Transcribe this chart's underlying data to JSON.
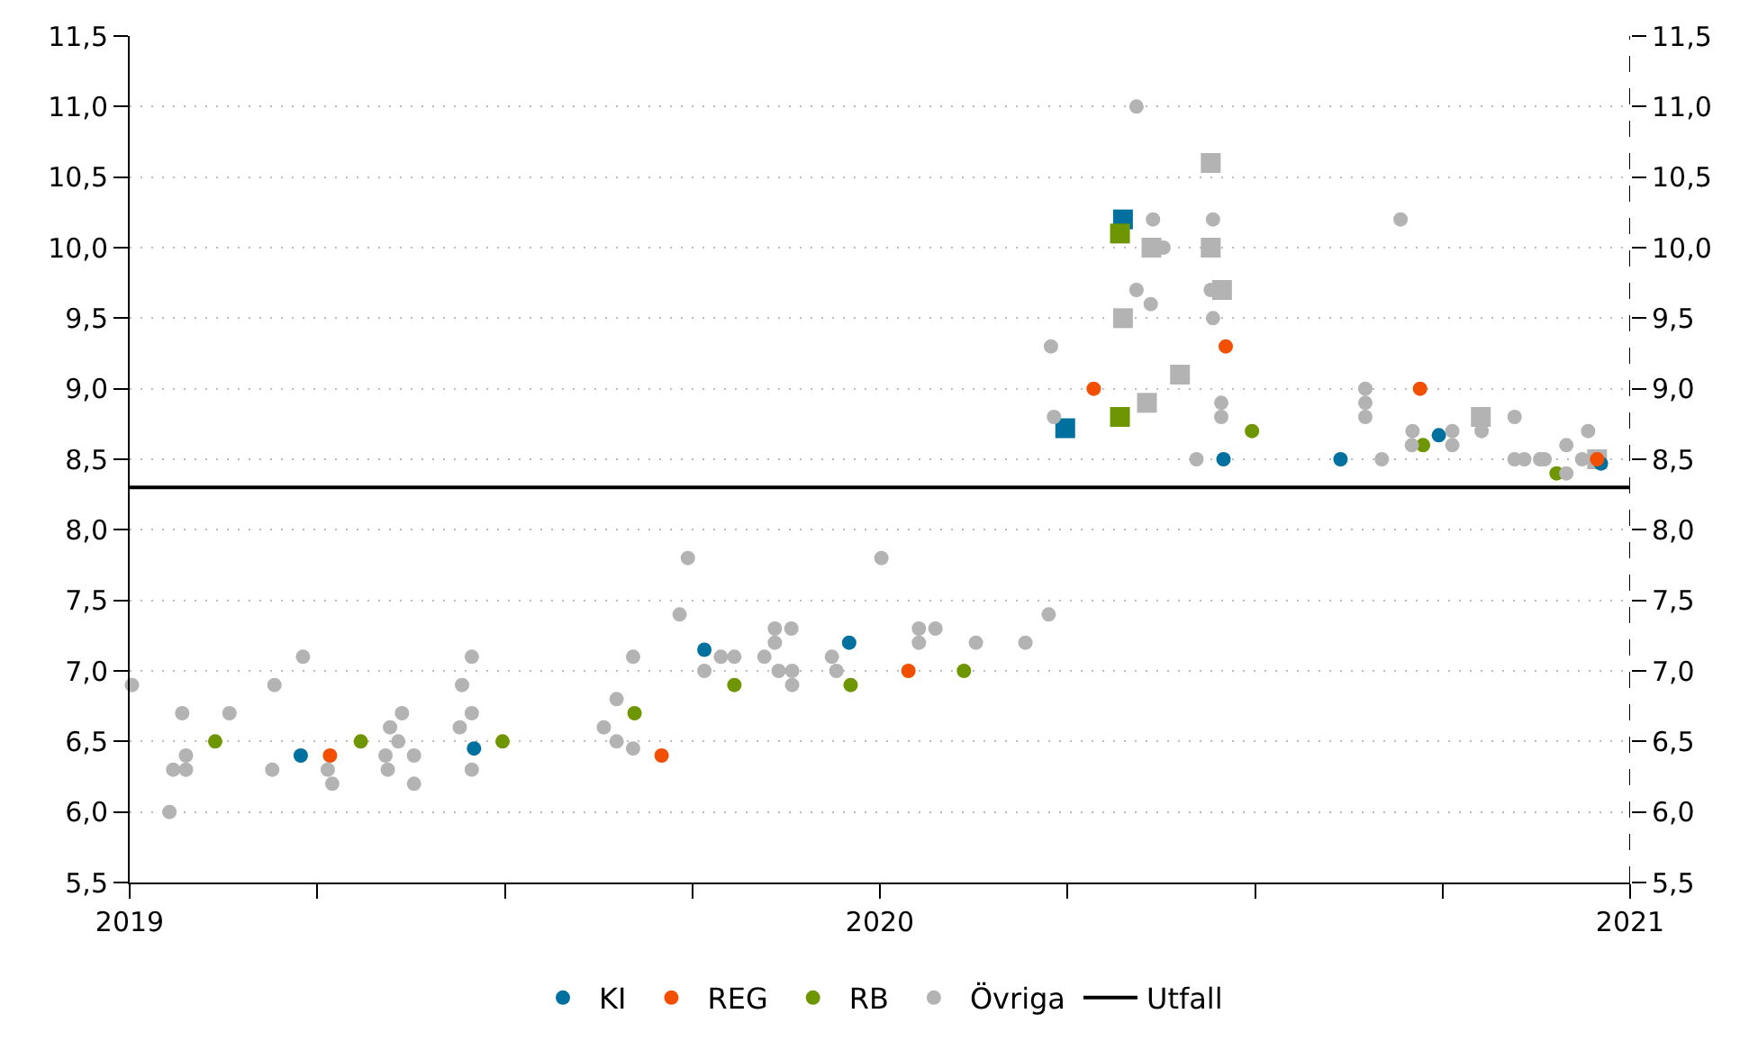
{
  "chart_data": {
    "type": "scatter",
    "series": [
      {
        "color": "#00709f",
        "marker": "square",
        "x": [
          2020.247,
          2020.324
        ],
        "values": [
          8.72,
          10.2
        ]
      },
      {
        "color": "#6e9600",
        "marker": "square",
        "x": [
          2020.32,
          2020.32
        ],
        "values": [
          8.8,
          10.1
        ]
      },
      {
        "color": "#b3b3b3",
        "marker": "square",
        "x": [
          2020.324,
          2020.356,
          2020.362,
          2020.4,
          2020.441,
          2020.441,
          2020.456,
          2020.801,
          2020.956
        ],
        "values": [
          9.5,
          8.9,
          10.0,
          9.1,
          10.6,
          10.0,
          9.7,
          8.8,
          8.5
        ]
      },
      {
        "name": "KI",
        "color": "#00709f",
        "marker": "circle",
        "x": [
          2019.228,
          2019.459,
          2019.766,
          2019.959,
          2020.458,
          2020.614,
          2020.745,
          2020.961
        ],
        "values": [
          6.4,
          6.45,
          7.15,
          7.2,
          8.5,
          8.5,
          8.67,
          8.47
        ]
      },
      {
        "name": "REG",
        "color": "#f25000",
        "marker": "circle",
        "x": [
          2019.267,
          2019.709,
          2020.038,
          2020.285,
          2020.461,
          2020.72,
          2020.956
        ],
        "values": [
          6.4,
          6.4,
          7.0,
          9.0,
          9.3,
          9.0,
          8.5
        ]
      },
      {
        "name": "RB",
        "color": "#6e9600",
        "marker": "circle",
        "x": [
          2019.114,
          2019.308,
          2019.497,
          2019.673,
          2019.806,
          2019.961,
          2020.112,
          2020.496,
          2020.724,
          2020.902
        ],
        "values": [
          6.5,
          6.5,
          6.5,
          6.7,
          6.9,
          6.9,
          7.0,
          8.7,
          8.6,
          8.4
        ]
      },
      {
        "name": "Övriga",
        "color": "#b3b3b3",
        "marker": "circle",
        "x": [
          2019.003,
          2019.053,
          2019.058,
          2019.07,
          2019.075,
          2019.075,
          2019.133,
          2019.19,
          2019.193,
          2019.231,
          2019.264,
          2019.27,
          2019.341,
          2019.344,
          2019.347,
          2019.358,
          2019.363,
          2019.379,
          2019.379,
          2019.44,
          2019.443,
          2019.456,
          2019.456,
          2019.456,
          2019.632,
          2019.649,
          2019.649,
          2019.671,
          2019.671,
          2019.733,
          2019.744,
          2019.766,
          2019.788,
          2019.806,
          2019.846,
          2019.86,
          2019.86,
          2019.865,
          2019.882,
          2019.883,
          2019.883,
          2019.936,
          2019.942,
          2020.002,
          2020.052,
          2020.052,
          2020.074,
          2020.128,
          2020.194,
          2020.225,
          2020.228,
          2020.232,
          2020.342,
          2020.342,
          2020.361,
          2020.364,
          2020.378,
          2020.422,
          2020.441,
          2020.444,
          2020.444,
          2020.455,
          2020.455,
          2020.647,
          2020.647,
          2020.647,
          2020.669,
          2020.694,
          2020.709,
          2020.71,
          2020.763,
          2020.763,
          2020.802,
          2020.846,
          2020.846,
          2020.859,
          2020.88,
          2020.886,
          2020.915,
          2020.915,
          2020.936,
          2020.944
        ],
        "values": [
          6.9,
          6.0,
          6.3,
          6.7,
          6.4,
          6.3,
          6.7,
          6.3,
          6.9,
          7.1,
          6.3,
          6.2,
          6.4,
          6.3,
          6.6,
          6.5,
          6.7,
          6.4,
          6.2,
          6.6,
          6.9,
          7.1,
          6.7,
          6.3,
          6.6,
          6.8,
          6.5,
          6.45,
          7.1,
          7.4,
          7.8,
          7.0,
          7.1,
          7.1,
          7.1,
          7.3,
          7.2,
          7.0,
          7.3,
          7.0,
          6.9,
          7.1,
          7.0,
          7.8,
          7.3,
          7.2,
          7.3,
          7.2,
          7.2,
          7.4,
          9.3,
          8.8,
          11.0,
          9.7,
          9.6,
          10.2,
          10.0,
          8.5,
          9.7,
          10.2,
          9.5,
          8.9,
          8.8,
          9.0,
          8.9,
          8.8,
          8.5,
          10.2,
          8.6,
          8.7,
          8.7,
          8.6,
          8.7,
          8.8,
          8.5,
          8.5,
          8.5,
          8.5,
          8.4,
          8.6,
          8.5,
          8.7
        ]
      },
      {
        "name": "Utfall",
        "type": "line",
        "color": "#000000",
        "marker": "none",
        "x": [
          2019,
          2021
        ],
        "values": [
          8.3,
          8.3
        ]
      }
    ],
    "xlim": [
      2019,
      2021
    ],
    "xticks": [
      2019,
      {
        "value": 2019.25,
        "label": null
      },
      {
        "value": 2019.5,
        "label": null
      },
      {
        "value": 2019.75,
        "label": null
      },
      2020,
      {
        "value": 2020.25,
        "label": null
      },
      {
        "value": 2020.5,
        "label": null
      },
      {
        "value": 2020.75,
        "label": null
      },
      2021
    ],
    "ylim": [
      5.5,
      11.5
    ],
    "yticks": [
      {
        "value": 5.5,
        "label": "5,5"
      },
      {
        "value": 6.0,
        "label": "6,0"
      },
      {
        "value": 6.5,
        "label": "6,5"
      },
      {
        "value": 7.0,
        "label": "7,0"
      },
      {
        "value": 7.5,
        "label": "7,5"
      },
      {
        "value": 8.0,
        "label": "8,0"
      },
      {
        "value": 8.5,
        "label": "8,5"
      },
      {
        "value": 9.0,
        "label": "9,0"
      },
      {
        "value": 9.5,
        "label": "9,5"
      },
      {
        "value": 10.0,
        "label": "10,0"
      },
      {
        "value": 10.5,
        "label": "10,5"
      },
      {
        "value": 11.0,
        "label": "11,0"
      },
      {
        "value": 11.5,
        "label": "11,5"
      }
    ],
    "y2lim": [
      5.5,
      11.5
    ],
    "y2ticks": [
      {
        "value": 5.5,
        "label": "5,5"
      },
      {
        "value": 6.0,
        "label": "6,0"
      },
      {
        "value": 6.5,
        "label": "6,5"
      },
      {
        "value": 7.0,
        "label": "7,0"
      },
      {
        "value": 7.5,
        "label": "7,5"
      },
      {
        "value": 8.0,
        "label": "8,0"
      },
      {
        "value": 8.5,
        "label": "8,5"
      },
      {
        "value": 9.0,
        "label": "9,0"
      },
      {
        "value": 9.5,
        "label": "9,5"
      },
      {
        "value": 10.0,
        "label": "10,0"
      },
      {
        "value": 10.5,
        "label": "10,5"
      },
      {
        "value": 11.0,
        "label": "11,0"
      },
      {
        "value": 11.5,
        "label": "11,5"
      }
    ],
    "ref_lines": [
      {
        "axis": "x",
        "value": 2021,
        "color": "#000000",
        "line_style": "dashed"
      }
    ],
    "grid": "y",
    "legend": "bottom"
  }
}
